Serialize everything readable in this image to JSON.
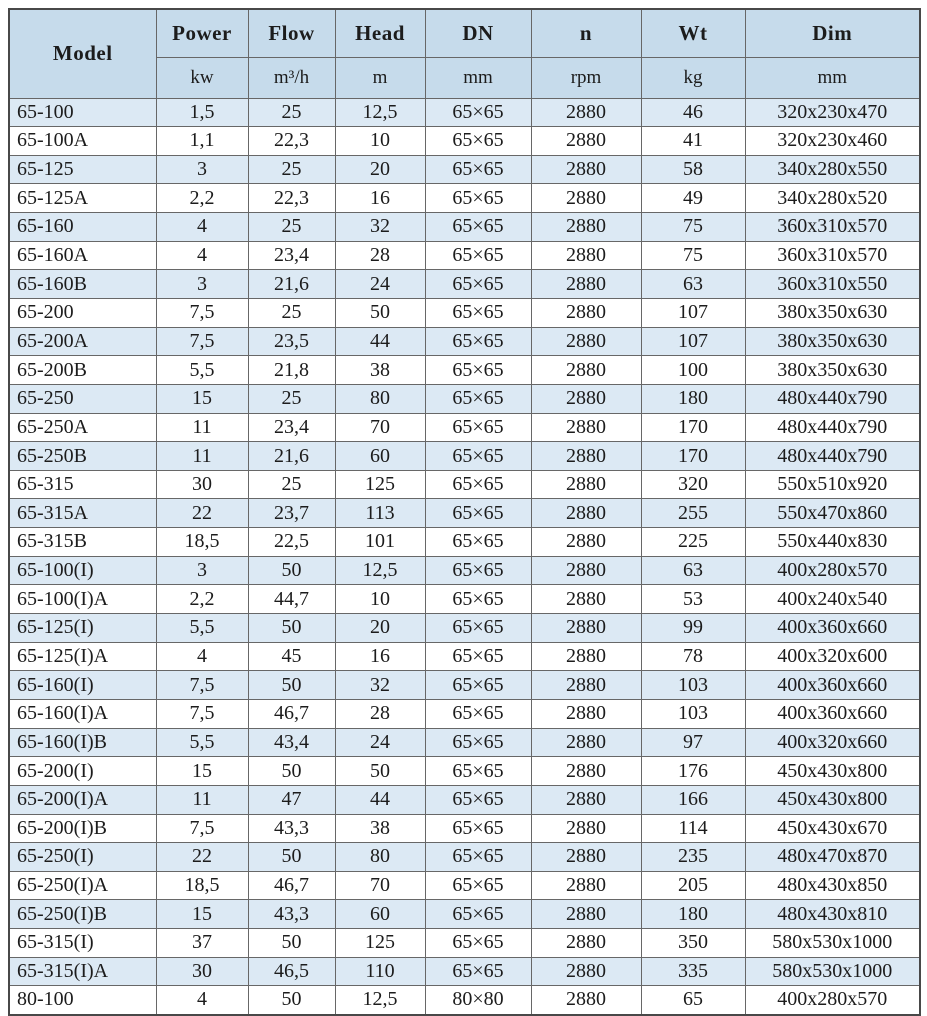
{
  "table": {
    "title": "pump-specification-table",
    "columns": [
      {
        "label": "Model",
        "unit": ""
      },
      {
        "label": "Power",
        "unit": "kw"
      },
      {
        "label": "Flow",
        "unit": "m³/h"
      },
      {
        "label": "Head",
        "unit": "m"
      },
      {
        "label": "DN",
        "unit": "mm"
      },
      {
        "label": "n",
        "unit": "rpm"
      },
      {
        "label": "Wt",
        "unit": "kg"
      },
      {
        "label": "Dim",
        "unit": "mm"
      }
    ],
    "rows": [
      [
        "65-100",
        "1,5",
        "25",
        "12,5",
        "65×65",
        "2880",
        "46",
        "320x230x470"
      ],
      [
        "65-100A",
        "1,1",
        "22,3",
        "10",
        "65×65",
        "2880",
        "41",
        "320x230x460"
      ],
      [
        "65-125",
        "3",
        "25",
        "20",
        "65×65",
        "2880",
        "58",
        "340x280x550"
      ],
      [
        "65-125A",
        "2,2",
        "22,3",
        "16",
        "65×65",
        "2880",
        "49",
        "340x280x520"
      ],
      [
        "65-160",
        "4",
        "25",
        "32",
        "65×65",
        "2880",
        "75",
        "360x310x570"
      ],
      [
        "65-160A",
        "4",
        "23,4",
        "28",
        "65×65",
        "2880",
        "75",
        "360x310x570"
      ],
      [
        "65-160B",
        "3",
        "21,6",
        "24",
        "65×65",
        "2880",
        "63",
        "360x310x550"
      ],
      [
        "65-200",
        "7,5",
        "25",
        "50",
        "65×65",
        "2880",
        "107",
        "380x350x630"
      ],
      [
        "65-200A",
        "7,5",
        "23,5",
        "44",
        "65×65",
        "2880",
        "107",
        "380x350x630"
      ],
      [
        "65-200B",
        "5,5",
        "21,8",
        "38",
        "65×65",
        "2880",
        "100",
        "380x350x630"
      ],
      [
        "65-250",
        "15",
        "25",
        "80",
        "65×65",
        "2880",
        "180",
        "480x440x790"
      ],
      [
        "65-250A",
        "11",
        "23,4",
        "70",
        "65×65",
        "2880",
        "170",
        "480x440x790"
      ],
      [
        "65-250B",
        "11",
        "21,6",
        "60",
        "65×65",
        "2880",
        "170",
        "480x440x790"
      ],
      [
        "65-315",
        "30",
        "25",
        "125",
        "65×65",
        "2880",
        "320",
        "550x510x920"
      ],
      [
        "65-315A",
        "22",
        "23,7",
        "113",
        "65×65",
        "2880",
        "255",
        "550x470x860"
      ],
      [
        "65-315B",
        "18,5",
        "22,5",
        "101",
        "65×65",
        "2880",
        "225",
        "550x440x830"
      ],
      [
        "65-100(I)",
        "3",
        "50",
        "12,5",
        "65×65",
        "2880",
        "63",
        "400x280x570"
      ],
      [
        "65-100(I)A",
        "2,2",
        "44,7",
        "10",
        "65×65",
        "2880",
        "53",
        "400x240x540"
      ],
      [
        "65-125(I)",
        "5,5",
        "50",
        "20",
        "65×65",
        "2880",
        "99",
        "400x360x660"
      ],
      [
        "65-125(I)A",
        "4",
        "45",
        "16",
        "65×65",
        "2880",
        "78",
        "400x320x600"
      ],
      [
        "65-160(I)",
        "7,5",
        "50",
        "32",
        "65×65",
        "2880",
        "103",
        "400x360x660"
      ],
      [
        "65-160(I)A",
        "7,5",
        "46,7",
        "28",
        "65×65",
        "2880",
        "103",
        "400x360x660"
      ],
      [
        "65-160(I)B",
        "5,5",
        "43,4",
        "24",
        "65×65",
        "2880",
        "97",
        "400x320x660"
      ],
      [
        "65-200(I)",
        "15",
        "50",
        "50",
        "65×65",
        "2880",
        "176",
        "450x430x800"
      ],
      [
        "65-200(I)A",
        "11",
        "47",
        "44",
        "65×65",
        "2880",
        "166",
        "450x430x800"
      ],
      [
        "65-200(I)B",
        "7,5",
        "43,3",
        "38",
        "65×65",
        "2880",
        "114",
        "450x430x670"
      ],
      [
        "65-250(I)",
        "22",
        "50",
        "80",
        "65×65",
        "2880",
        "235",
        "480x470x870"
      ],
      [
        "65-250(I)A",
        "18,5",
        "46,7",
        "70",
        "65×65",
        "2880",
        "205",
        "480x430x850"
      ],
      [
        "65-250(I)B",
        "15",
        "43,3",
        "60",
        "65×65",
        "2880",
        "180",
        "480x430x810"
      ],
      [
        "65-315(I)",
        "37",
        "50",
        "125",
        "65×65",
        "2880",
        "350",
        "580x530x1000"
      ],
      [
        "65-315(I)A",
        "30",
        "46,5",
        "110",
        "65×65",
        "2880",
        "335",
        "580x530x1000"
      ]
    ],
    "partial_bottom_row": [
      "80-100",
      "4",
      "50",
      "12,5",
      "80×80",
      "2880",
      "65",
      "400x280x570"
    ],
    "colors": {
      "header_bg": "#c6dbeb",
      "row_alt_bg": "#dce9f4",
      "row_bg": "#ffffff",
      "grid_border": "#676767",
      "outer_border": "#484848",
      "text": "#1c1c1c"
    }
  }
}
